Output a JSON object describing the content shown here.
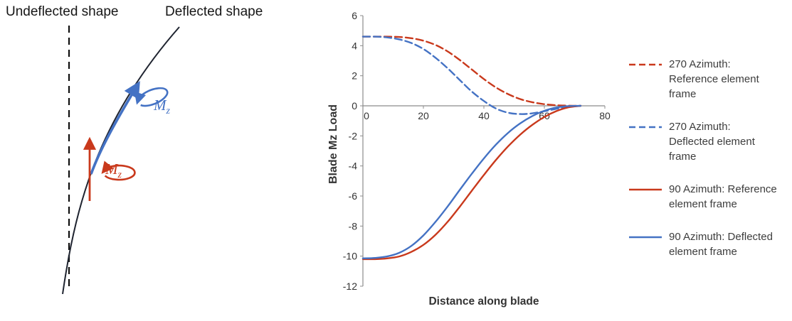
{
  "diagram": {
    "undeflected_label": "Undeflected shape",
    "deflected_label": "Deflected shape",
    "blue_moment": {
      "symbol": "M",
      "subscript": "z"
    },
    "red_moment": {
      "symbol": "M",
      "subscript": "z"
    },
    "colors": {
      "blue": "#4472c4",
      "red": "#c9391c",
      "shape": "#1f2430"
    }
  },
  "chart_data": {
    "type": "line",
    "title": "",
    "xlabel": "Distance along blade",
    "ylabel": "Blade Mz Load",
    "xlim": [
      0,
      80
    ],
    "ylim": [
      -12,
      6
    ],
    "x_ticks": [
      0,
      20,
      40,
      60,
      80
    ],
    "y_ticks": [
      -12,
      -10,
      -8,
      -6,
      -4,
      -2,
      0,
      2,
      4,
      6
    ],
    "grid": false,
    "legend_position": "right",
    "axis_color": "#8c8c8c",
    "x": [
      0,
      4,
      8,
      12,
      16,
      20,
      24,
      28,
      32,
      36,
      40,
      44,
      48,
      52,
      56,
      60,
      64,
      68,
      72
    ],
    "series": [
      {
        "name": "270 Azimuth:\nReference element\nframe",
        "color": "#c9391c",
        "style": "dashed",
        "values": [
          4.6,
          4.6,
          4.6,
          4.58,
          4.5,
          4.33,
          4.05,
          3.62,
          3.05,
          2.42,
          1.78,
          1.22,
          0.78,
          0.45,
          0.24,
          0.11,
          0.04,
          0.01,
          0
        ]
      },
      {
        "name": "270 Azimuth:\nDeflected element\nframe",
        "color": "#4472c4",
        "style": "dashed",
        "values": [
          4.6,
          4.6,
          4.55,
          4.42,
          4.18,
          3.78,
          3.2,
          2.5,
          1.72,
          0.95,
          0.32,
          -0.18,
          -0.46,
          -0.55,
          -0.5,
          -0.36,
          -0.2,
          -0.07,
          0
        ]
      },
      {
        "name": "90 Azimuth: Reference\nelement frame",
        "color": "#c9391c",
        "style": "solid",
        "values": [
          -10.2,
          -10.2,
          -10.15,
          -10.02,
          -9.72,
          -9.25,
          -8.58,
          -7.72,
          -6.72,
          -5.65,
          -4.6,
          -3.6,
          -2.7,
          -1.92,
          -1.27,
          -0.74,
          -0.35,
          -0.1,
          0
        ]
      },
      {
        "name": "90 Azimuth: Deflected\nelement frame",
        "color": "#4472c4",
        "style": "solid",
        "values": [
          -10.15,
          -10.12,
          -10.02,
          -9.78,
          -9.32,
          -8.62,
          -7.72,
          -6.7,
          -5.6,
          -4.52,
          -3.5,
          -2.58,
          -1.8,
          -1.17,
          -0.68,
          -0.33,
          -0.11,
          -0.02,
          0
        ]
      }
    ]
  }
}
